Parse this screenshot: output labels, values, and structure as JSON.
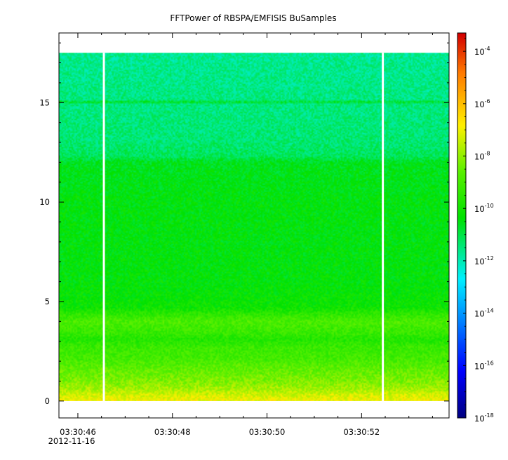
{
  "chart_data": {
    "type": "heatmap",
    "title": "FFTPower of RBSPA/EMFISIS  BuSamples",
    "xlabel": "",
    "ylabel": "",
    "date_label": "2012-11-16",
    "x_tick_labels": [
      "03:30:46",
      "03:30:48",
      "03:30:50",
      "03:30:52"
    ],
    "x_tick_values_s": [
      46,
      48,
      50,
      52
    ],
    "xlim_s": [
      45.6,
      53.85
    ],
    "y_tick_labels": [
      "0",
      "5",
      "10",
      "15"
    ],
    "y_tick_values": [
      0,
      5,
      10,
      15
    ],
    "ylim": [
      -0.85,
      18.5
    ],
    "data_y_range": [
      0,
      17.5
    ],
    "data_x_range_s": [
      45.6,
      53.85
    ],
    "gaps_s": [
      46.55,
      52.45
    ],
    "line_feature_y": 15.0,
    "colorbar": {
      "scale": "log",
      "tick_labels": [
        {
          "base": "10",
          "exp": "-4"
        },
        {
          "base": "10",
          "exp": "-6"
        },
        {
          "base": "10",
          "exp": "-8"
        },
        {
          "base": "10",
          "exp": "-10"
        },
        {
          "base": "10",
          "exp": "-12"
        },
        {
          "base": "10",
          "exp": "-14"
        },
        {
          "base": "10",
          "exp": "-16"
        },
        {
          "base": "10",
          "exp": "-18"
        }
      ],
      "tick_exponents": [
        -4,
        -6,
        -8,
        -10,
        -12,
        -14,
        -16,
        -18
      ],
      "range_exponent": [
        -18,
        -3.3
      ]
    },
    "power_profile_log10": [
      {
        "y": 0.0,
        "p": -6.9
      },
      {
        "y": 0.3,
        "p": -7.3
      },
      {
        "y": 0.6,
        "p": -7.8
      },
      {
        "y": 1.0,
        "p": -8.2
      },
      {
        "y": 1.6,
        "p": -8.6
      },
      {
        "y": 2.2,
        "p": -9.1
      },
      {
        "y": 2.7,
        "p": -9.2
      },
      {
        "y": 3.1,
        "p": -9.7
      },
      {
        "y": 3.4,
        "p": -9.3
      },
      {
        "y": 4.0,
        "p": -8.9
      },
      {
        "y": 4.4,
        "p": -9.5
      },
      {
        "y": 4.7,
        "p": -10.1
      },
      {
        "y": 6.0,
        "p": -10.35
      },
      {
        "y": 8.0,
        "p": -10.4
      },
      {
        "y": 10.0,
        "p": -10.4
      },
      {
        "y": 12.0,
        "p": -10.6
      },
      {
        "y": 12.3,
        "p": -11.2
      },
      {
        "y": 13.0,
        "p": -11.4
      },
      {
        "y": 16.0,
        "p": -11.6
      },
      {
        "y": 17.5,
        "p": -11.7
      }
    ]
  }
}
